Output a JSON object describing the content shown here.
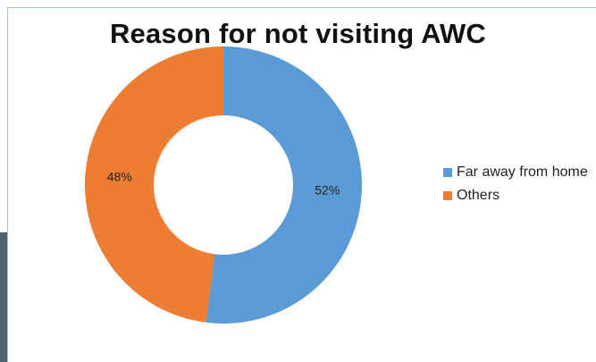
{
  "chart_data": {
    "type": "pie",
    "title": "Reason for not visiting AWC",
    "categories": [
      "Far away from home",
      "Others"
    ],
    "values": [
      52,
      48
    ],
    "labels": [
      "52%",
      "48%"
    ],
    "colors": [
      "#5b9bd5",
      "#ed7d31"
    ],
    "legend_position": "right",
    "donut": true
  }
}
